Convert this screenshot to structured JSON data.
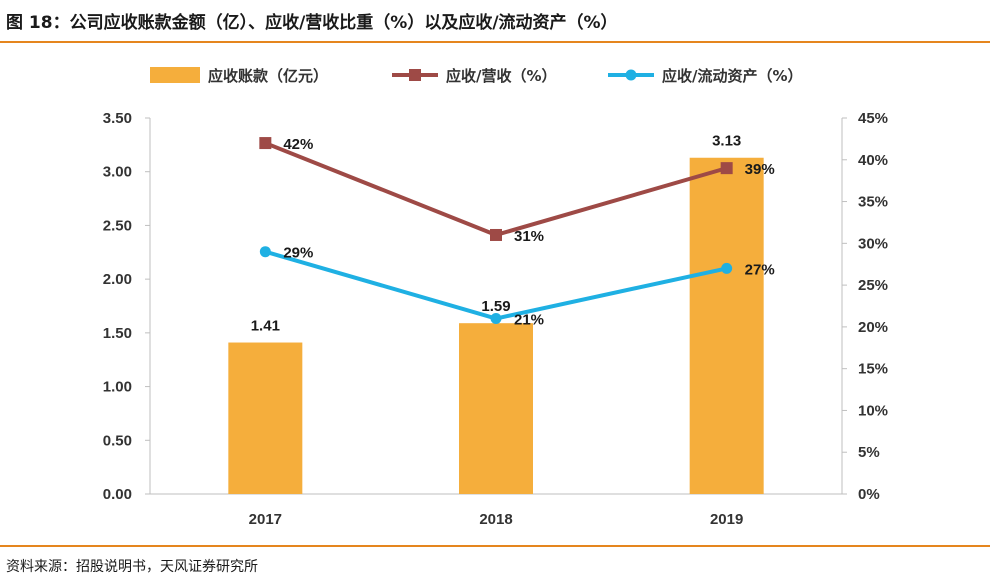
{
  "header": {
    "title": "图 18：公司应收账款金额（亿）、应收/营收比重（%）以及应收/流动资产（%）"
  },
  "footer": {
    "source": "资料来源：招股说明书，天风证券研究所"
  },
  "colors": {
    "bar": "#f5ae3c",
    "line_revenue": "#9e4a46",
    "line_assets": "#1fb0e3",
    "accent_rule": "#e5861e"
  },
  "chart_data": {
    "type": "bar",
    "categories": [
      "2017",
      "2018",
      "2019"
    ],
    "series": [
      {
        "name": "应收账款（亿元）",
        "type": "bar",
        "axis": "left",
        "values": [
          1.41,
          1.59,
          3.13
        ],
        "labels": [
          "1.41",
          "1.59",
          "3.13"
        ]
      },
      {
        "name": "应收/营收（%）",
        "type": "line",
        "marker": "square",
        "axis": "right",
        "values": [
          42,
          31,
          39
        ],
        "labels": [
          "42%",
          "31%",
          "39%"
        ]
      },
      {
        "name": "应收/流动资产（%）",
        "type": "line",
        "marker": "circle",
        "axis": "right",
        "values": [
          29,
          21,
          27
        ],
        "labels": [
          "29%",
          "21%",
          "27%"
        ]
      }
    ],
    "y_left": {
      "min": 0,
      "max": 3.5,
      "step": 0.5,
      "ticks": [
        "0.00",
        "0.50",
        "1.00",
        "1.50",
        "2.00",
        "2.50",
        "3.00",
        "3.50"
      ]
    },
    "y_right": {
      "min": 0,
      "max": 45,
      "step": 5,
      "ticks": [
        "0%",
        "5%",
        "10%",
        "15%",
        "20%",
        "25%",
        "30%",
        "35%",
        "40%",
        "45%"
      ]
    },
    "grid": false,
    "legend_position": "top"
  }
}
